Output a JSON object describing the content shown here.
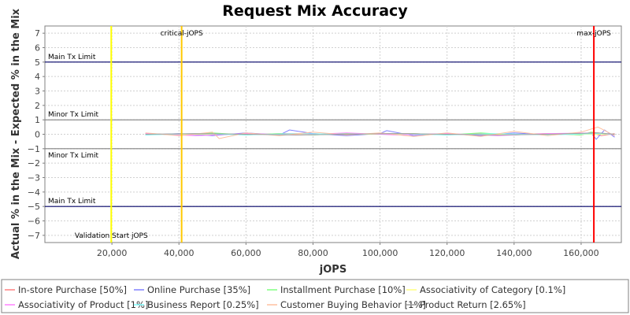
{
  "chart_data": {
    "type": "line",
    "title": "Request Mix Accuracy",
    "xlabel": "jOPS",
    "ylabel": "Actual % in the Mix - Expected % in the Mix",
    "xlim": [
      0,
      172000
    ],
    "ylim": [
      -7.5,
      7.5
    ],
    "x_ticks": [
      20000,
      40000,
      60000,
      80000,
      100000,
      120000,
      140000,
      160000
    ],
    "x_tick_labels": [
      "20,000",
      "40,000",
      "60,000",
      "80,000",
      "100,000",
      "120,000",
      "140,000",
      "160,000"
    ],
    "y_ticks": [
      -7,
      -6,
      -5,
      -4,
      -3,
      -2,
      -1,
      0,
      1,
      2,
      3,
      4,
      5,
      6,
      7
    ],
    "y_tick_labels": [
      "−7",
      "−6",
      "−5",
      "−4",
      "−3",
      "−2",
      "−1",
      "0",
      "1",
      "2",
      "3",
      "4",
      "5",
      "6",
      "7"
    ],
    "grid": true,
    "legend_position": "bottom",
    "horizontal_lines": [
      {
        "label": "Main Tx Limit",
        "y": 5,
        "color": "#000066"
      },
      {
        "label": "Minor Tx Limit",
        "y": 1,
        "color": "#808080"
      },
      {
        "label": "Minor Tx Limit",
        "y": -1,
        "color": "#808080"
      },
      {
        "label": "Main Tx Limit",
        "y": -5,
        "color": "#000066"
      }
    ],
    "vertical_lines": [
      {
        "label": "Validation Start jOPS",
        "x": 19800,
        "color": "#ffff00",
        "label_pos": "bottom"
      },
      {
        "label": "critical-jOPS",
        "x": 40800,
        "color": "#ffc800",
        "label_pos": "top"
      },
      {
        "label": "max-jOPS",
        "x": 163800,
        "color": "#ff0000",
        "label_pos": "top"
      }
    ],
    "series": [
      {
        "name": "In-store Purchase [50%]",
        "color": "#ff8080",
        "x": [
          30000,
          40000,
          50000,
          60000,
          70000,
          80000,
          90000,
          100000,
          110000,
          120000,
          130000,
          140000,
          150000,
          160000,
          163000,
          166000,
          170000
        ],
        "values": [
          0.05,
          -0.05,
          0.05,
          -0.05,
          0.05,
          0.05,
          -0.05,
          0.05,
          0.05,
          -0.05,
          0.05,
          0.0,
          0.05,
          -0.05,
          0.1,
          -0.1,
          0.05
        ]
      },
      {
        "name": "Online Purchase [35%]",
        "color": "#8080ff",
        "x": [
          30000,
          40000,
          50000,
          60000,
          70000,
          73000,
          80000,
          90000,
          100000,
          102000,
          110000,
          120000,
          130000,
          140000,
          150000,
          160000,
          163000,
          164500,
          167000,
          170000
        ],
        "values": [
          -0.05,
          0.05,
          -0.1,
          0.1,
          -0.05,
          0.3,
          0.05,
          -0.1,
          0.05,
          0.25,
          -0.1,
          0.05,
          -0.1,
          0.1,
          -0.05,
          0.05,
          0.1,
          -0.35,
          0.3,
          -0.2
        ]
      },
      {
        "name": "Installment Purchase [10%]",
        "color": "#80ff80",
        "x": [
          30000,
          40000,
          50000,
          60000,
          70000,
          80000,
          90000,
          100000,
          110000,
          120000,
          130000,
          140000,
          150000,
          160000,
          163000,
          170000
        ],
        "values": [
          0.05,
          -0.05,
          0.1,
          -0.05,
          0.05,
          -0.05,
          0.05,
          0.0,
          0.05,
          -0.05,
          0.1,
          -0.05,
          0.05,
          -0.05,
          0.15,
          -0.05
        ]
      },
      {
        "name": "Associativity of Category [0.1%]",
        "color": "#ffff80",
        "x": [
          30000,
          60000,
          90000,
          120000,
          150000,
          170000
        ],
        "values": [
          0.0,
          0.0,
          0.0,
          0.0,
          0.0,
          0.0
        ]
      },
      {
        "name": "Associativity of Product [1%]",
        "color": "#ff80ff",
        "x": [
          30000,
          45000,
          60000,
          75000,
          90000,
          105000,
          120000,
          135000,
          150000,
          165000,
          170000
        ],
        "values": [
          0.05,
          -0.1,
          0.05,
          -0.05,
          0.1,
          -0.05,
          0.05,
          -0.1,
          0.05,
          0.1,
          -0.05
        ]
      },
      {
        "name": "Business Report [0.25%]",
        "color": "#80ffff",
        "x": [
          30000,
          45000,
          60000,
          75000,
          90000,
          105000,
          120000,
          135000,
          150000,
          165000,
          170000
        ],
        "values": [
          -0.05,
          0.05,
          -0.05,
          0.05,
          0.0,
          0.05,
          -0.05,
          0.05,
          -0.05,
          0.05,
          0.0
        ]
      },
      {
        "name": "Customer Buying Behavior [1%]",
        "color": "#ffc0a0",
        "x": [
          30000,
          40000,
          50000,
          52000,
          60000,
          70000,
          80000,
          90000,
          100000,
          110000,
          120000,
          130000,
          140000,
          150000,
          160000,
          165000,
          170000
        ],
        "values": [
          0.1,
          -0.1,
          0.15,
          -0.3,
          0.1,
          -0.1,
          0.15,
          -0.05,
          0.1,
          -0.15,
          0.1,
          -0.15,
          0.2,
          -0.1,
          0.15,
          0.5,
          -0.1
        ]
      },
      {
        "name": "Product Return [2.65%]",
        "color": "#a0a0a0",
        "x": [
          30000,
          45000,
          60000,
          75000,
          90000,
          105000,
          120000,
          135000,
          150000,
          165000,
          170000
        ],
        "values": [
          0.0,
          0.05,
          0.0,
          -0.05,
          0.0,
          0.05,
          0.0,
          -0.05,
          0.0,
          0.1,
          0.0
        ]
      }
    ]
  }
}
